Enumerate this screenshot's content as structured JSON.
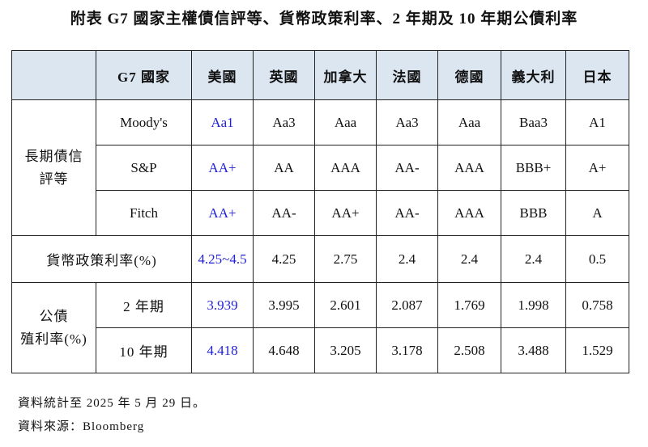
{
  "title": "附表 G7 國家主權債信評等、貨幣政策利率、2 年期及 10 年期公債利率",
  "headers": [
    "",
    "G7 國家",
    "美國",
    "英國",
    "加拿大",
    "法國",
    "德國",
    "義大利",
    "日本"
  ],
  "rating_group": "長期債信評等",
  "rating_group_line1": "長期債信",
  "rating_group_line2": "評等",
  "ratings": [
    {
      "agency": "Moody's",
      "values": [
        "Aa1",
        "Aa3",
        "Aaa",
        "Aa3",
        "Aaa",
        "Baa3",
        "A1"
      ]
    },
    {
      "agency": "S&P",
      "values": [
        "AA+",
        "AA",
        "AAA",
        "AA-",
        "AAA",
        "BBB+",
        "A+"
      ]
    },
    {
      "agency": "Fitch",
      "values": [
        "AA+",
        "AA-",
        "AA+",
        "AA-",
        "AAA",
        "BBB",
        "A"
      ]
    }
  ],
  "policy_rate": {
    "label": "貨幣政策利率(%)",
    "values": [
      "4.25~4.5",
      "4.25",
      "2.75",
      "2.4",
      "2.4",
      "2.4",
      "0.5"
    ]
  },
  "yield_group_line1": "公債",
  "yield_group_line2": "殖利率(%)",
  "yields": [
    {
      "tenor": "2 年期",
      "values": [
        "3.939",
        "3.995",
        "2.601",
        "2.087",
        "1.769",
        "1.998",
        "0.758"
      ]
    },
    {
      "tenor": "10 年期",
      "values": [
        "4.418",
        "4.648",
        "3.205",
        "3.178",
        "2.508",
        "3.488",
        "1.529"
      ]
    }
  ],
  "footnotes": {
    "data_date": "資料統計至 2025 年 5 月 29 日。",
    "source": "資料來源：Bloomberg"
  },
  "colors": {
    "header_bg": "#dce6f1",
    "us_highlight": "#1f1fd6",
    "border": "#222222"
  }
}
